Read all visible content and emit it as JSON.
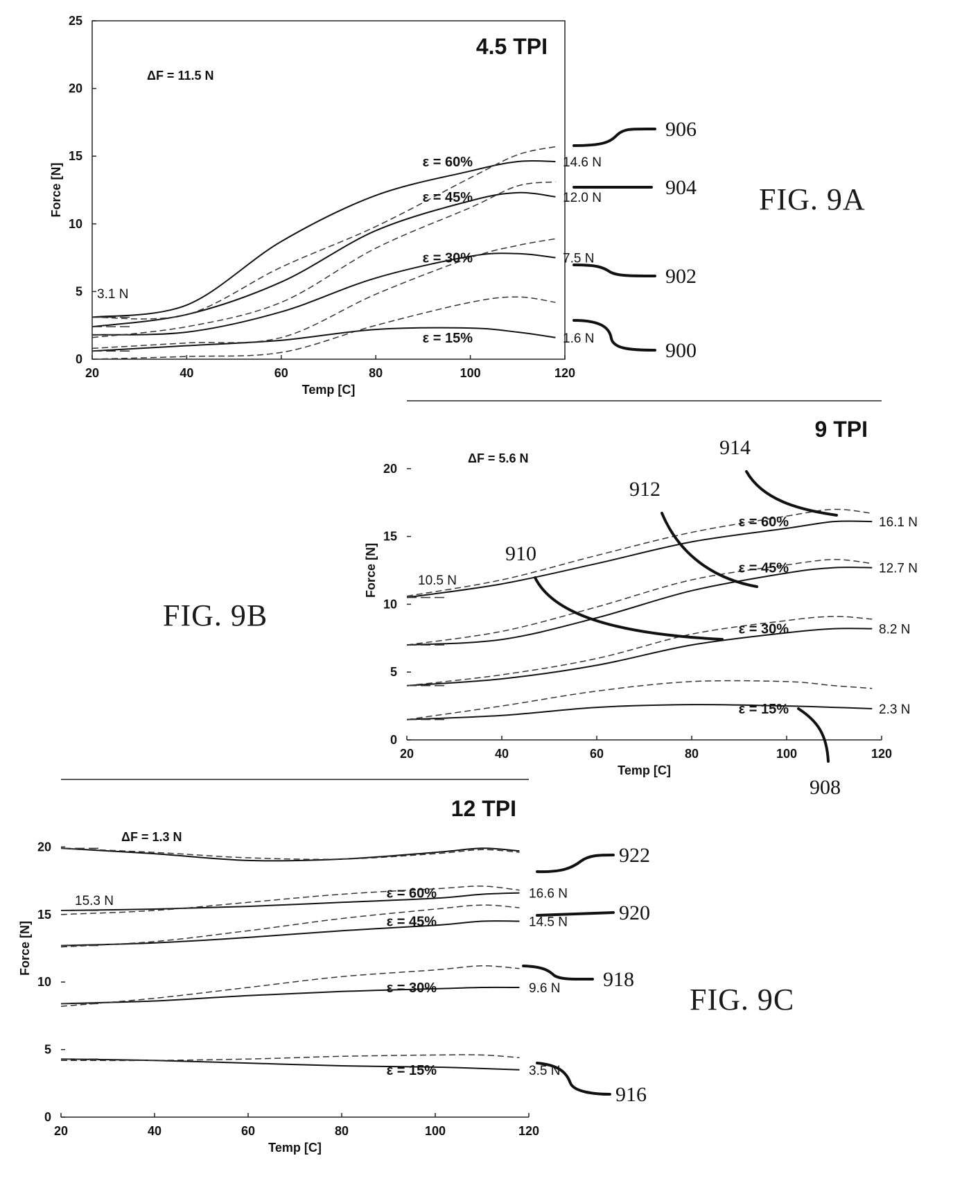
{
  "figure_labels": {
    "a": "FIG. 9A",
    "b": "FIG. 9B",
    "c": "FIG. 9C"
  },
  "chart_data": [
    {
      "id": "a",
      "type": "line",
      "title": "4.5 TPI",
      "xlabel": "Temp [C]",
      "ylabel": "Force [N]",
      "xlim": [
        20,
        120
      ],
      "ylim": [
        0,
        25
      ],
      "xticks": [
        20,
        40,
        60,
        80,
        100,
        120
      ],
      "yticks": [
        0,
        5,
        10,
        15,
        20,
        25
      ],
      "grid": false,
      "delta_label": "ΔF = 11.5 N",
      "start_label": "3.1 N",
      "strain_labels": [
        "ε = 60%",
        "ε = 45%",
        "ε = 30%",
        "ε = 15%"
      ],
      "end_labels": [
        "14.6 N",
        "12.0 N",
        "7.5 N",
        "1.6 N"
      ],
      "ref_numerals": [
        "906",
        "904",
        "902",
        "900"
      ],
      "series": [
        {
          "name": "ε = 15%",
          "x": [
            20,
            40,
            60,
            80,
            100,
            110,
            118
          ],
          "heat": [
            0.6,
            1.0,
            1.4,
            2.2,
            2.3,
            2.0,
            1.6
          ],
          "cool": [
            0.0,
            0.2,
            0.5,
            2.5,
            4.2,
            4.6,
            4.2
          ]
        },
        {
          "name": "ε = 30%",
          "x": [
            20,
            40,
            60,
            80,
            100,
            110,
            118
          ],
          "heat": [
            1.8,
            2.0,
            3.5,
            6.0,
            7.6,
            7.8,
            7.5
          ],
          "cool": [
            0.8,
            1.2,
            1.6,
            4.8,
            7.5,
            8.4,
            8.9
          ]
        },
        {
          "name": "ε = 45%",
          "x": [
            20,
            40,
            60,
            80,
            100,
            110,
            118
          ],
          "heat": [
            2.4,
            3.3,
            5.7,
            9.5,
            11.7,
            12.3,
            12.0
          ],
          "cool": [
            1.6,
            2.4,
            4.2,
            8.2,
            11.2,
            12.8,
            13.1
          ]
        },
        {
          "name": "ε = 60%",
          "x": [
            20,
            40,
            60,
            80,
            100,
            110,
            118
          ],
          "heat": [
            3.1,
            4.0,
            8.7,
            12.1,
            13.9,
            14.6,
            14.6
          ],
          "cool": [
            3.1,
            3.3,
            6.8,
            9.8,
            13.4,
            15.1,
            15.7
          ]
        }
      ]
    },
    {
      "id": "b",
      "type": "line",
      "title": "9 TPI",
      "xlabel": "Temp [C]",
      "ylabel": "Force [N]",
      "xlim": [
        20,
        120
      ],
      "ylim": [
        0,
        25
      ],
      "xticks": [
        20,
        40,
        60,
        80,
        100,
        120
      ],
      "yticks": [
        0,
        5,
        10,
        15,
        20
      ],
      "grid": false,
      "delta_label": "ΔF = 5.6 N",
      "start_label": "10.5 N",
      "strain_labels": [
        "ε = 60%",
        "ε = 45%",
        "ε = 30%",
        "ε = 15%"
      ],
      "end_labels": [
        "16.1 N",
        "12.7 N",
        "8.2 N",
        "2.3 N"
      ],
      "ref_numerals": [
        "914",
        "912",
        "910",
        "908"
      ],
      "series": [
        {
          "name": "ε = 15%",
          "x": [
            20,
            40,
            60,
            80,
            100,
            110,
            118
          ],
          "heat": [
            1.5,
            1.8,
            2.4,
            2.6,
            2.5,
            2.4,
            2.3
          ],
          "cool": [
            1.5,
            2.5,
            3.6,
            4.3,
            4.3,
            4.0,
            3.8
          ]
        },
        {
          "name": "ε = 30%",
          "x": [
            20,
            40,
            60,
            80,
            100,
            110,
            118
          ],
          "heat": [
            4.0,
            4.5,
            5.5,
            7.0,
            7.9,
            8.2,
            8.2
          ],
          "cool": [
            4.0,
            4.8,
            6.0,
            7.8,
            8.8,
            9.1,
            8.9
          ]
        },
        {
          "name": "ε = 45%",
          "x": [
            20,
            40,
            60,
            80,
            100,
            110,
            118
          ],
          "heat": [
            7.0,
            7.4,
            9.0,
            11.0,
            12.3,
            12.7,
            12.7
          ],
          "cool": [
            7.0,
            8.0,
            9.8,
            11.8,
            12.9,
            13.3,
            13.0
          ]
        },
        {
          "name": "ε = 60%",
          "x": [
            20,
            40,
            60,
            80,
            100,
            110,
            118
          ],
          "heat": [
            10.5,
            11.5,
            13.0,
            14.6,
            15.6,
            16.1,
            16.1
          ],
          "cool": [
            10.6,
            11.8,
            13.6,
            15.3,
            16.5,
            17.0,
            16.7
          ]
        }
      ]
    },
    {
      "id": "c",
      "type": "line",
      "title": "12 TPI",
      "xlabel": "Temp [C]",
      "ylabel": "Force [N]",
      "xlim": [
        20,
        120
      ],
      "ylim": [
        0,
        25
      ],
      "xticks": [
        20,
        40,
        60,
        80,
        100,
        120
      ],
      "yticks": [
        0,
        5,
        10,
        15,
        20
      ],
      "grid": false,
      "delta_label": "ΔF = 1.3 N",
      "start_label": "15.3 N",
      "strain_labels": [
        "ε = 60%",
        "ε = 45%",
        "ε = 30%",
        "ε = 15%"
      ],
      "end_labels": [
        "16.6 N",
        "14.5 N",
        "9.6 N",
        "3.5 N"
      ],
      "ref_numerals": [
        "922",
        "920",
        "918",
        "916"
      ],
      "series": [
        {
          "name": "ε = 15%",
          "x": [
            20,
            40,
            60,
            80,
            100,
            110,
            118
          ],
          "heat": [
            4.3,
            4.2,
            4.0,
            3.8,
            3.7,
            3.6,
            3.5
          ],
          "cool": [
            4.2,
            4.2,
            4.3,
            4.5,
            4.6,
            4.6,
            4.4
          ]
        },
        {
          "name": "ε = 30%",
          "x": [
            20,
            40,
            60,
            80,
            100,
            110,
            118
          ],
          "heat": [
            8.4,
            8.6,
            9.0,
            9.3,
            9.5,
            9.6,
            9.6
          ],
          "cool": [
            8.2,
            8.8,
            9.6,
            10.4,
            10.9,
            11.2,
            11.0
          ]
        },
        {
          "name": "ε = 45%",
          "x": [
            20,
            40,
            60,
            80,
            100,
            110,
            118
          ],
          "heat": [
            12.7,
            12.9,
            13.3,
            13.8,
            14.2,
            14.5,
            14.5
          ],
          "cool": [
            12.6,
            13.0,
            13.8,
            14.7,
            15.4,
            15.7,
            15.5
          ]
        },
        {
          "name": "ε = 60%",
          "x": [
            20,
            40,
            60,
            80,
            100,
            110,
            118
          ],
          "heat": [
            15.3,
            15.4,
            15.6,
            15.9,
            16.2,
            16.5,
            16.6
          ],
          "cool": [
            15.0,
            15.3,
            15.9,
            16.5,
            16.9,
            17.1,
            16.8
          ]
        },
        {
          "name": "",
          "x": [
            20,
            40,
            60,
            80,
            100,
            110,
            118
          ],
          "heat": [
            19.9,
            19.5,
            19.0,
            19.1,
            19.6,
            19.9,
            19.7
          ],
          "cool": [
            19.9,
            19.6,
            19.2,
            19.1,
            19.5,
            19.8,
            19.6
          ]
        }
      ]
    }
  ]
}
